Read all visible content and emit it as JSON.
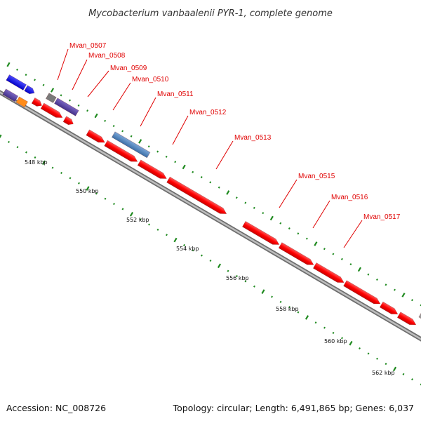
{
  "title": "Mycobacterium vanbaalenii PYR-1, complete genome",
  "footer": {
    "accession": "Accession: NC_008726",
    "topology": "Topology: circular; Length: 6,491,865 bp; Genes: 6,037"
  },
  "colors": {
    "gene_primary": "#ff0000",
    "gene_highlight": "#4d7fb5",
    "gene_blue": "#0000ee",
    "gene_purple": "#5a44a0",
    "gene_orange": "#ff8c1a",
    "gene_gray": "#7a7a7a",
    "tick": "#1f8a1f",
    "label": "#e00000",
    "backbone": "#8c8c8c"
  },
  "gene_labels": [
    "Mvan_0507",
    "Mvan_0508",
    "Mvan_0509",
    "Mvan_0510",
    "Mvan_0511",
    "Mvan_0512",
    "Mvan_0513",
    "Mvan_0515",
    "Mvan_0516",
    "Mvan_0517"
  ],
  "tick_labels": [
    "548 kbp",
    "550 kbp",
    "552 kbp",
    "554 kbp",
    "556 kbp",
    "558 kbp",
    "560 kbp",
    "562 kbp"
  ]
}
